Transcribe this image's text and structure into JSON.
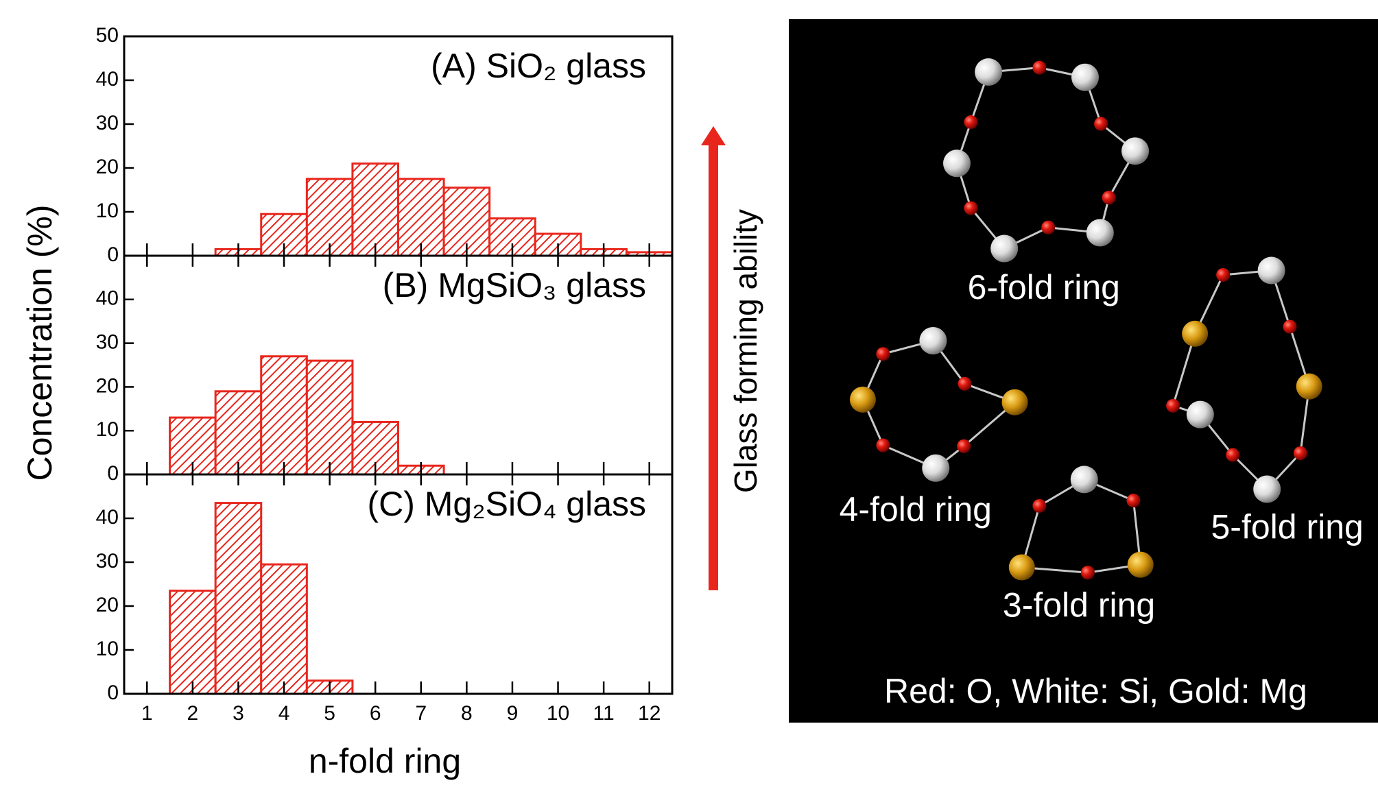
{
  "chart_data": [
    {
      "type": "bar",
      "title": "(A) SiO₂ glass",
      "color": "#e8261c",
      "x": [
        1,
        2,
        3,
        4,
        5,
        6,
        7,
        8,
        9,
        10,
        11,
        12
      ],
      "values": [
        0,
        0,
        1.5,
        9.5,
        17.5,
        21,
        17.5,
        15.5,
        8.5,
        5,
        1.5,
        0.8
      ],
      "xlim": [
        0.5,
        12.5
      ],
      "ylim": [
        0,
        50
      ],
      "yticks": [
        0,
        10,
        20,
        30,
        40,
        50
      ]
    },
    {
      "type": "bar",
      "title": "(B) MgSiO₃ glass",
      "color": "#e8261c",
      "ylabel": "Concentration (%)",
      "x": [
        1,
        2,
        3,
        4,
        5,
        6,
        7,
        8,
        9,
        10,
        11,
        12
      ],
      "values": [
        0,
        13,
        19,
        27,
        26,
        12,
        2,
        0,
        0,
        0,
        0,
        0
      ],
      "xlim": [
        0.5,
        12.5
      ],
      "ylim": [
        0,
        50
      ],
      "yticks": [
        0,
        10,
        20,
        30,
        40
      ]
    },
    {
      "type": "bar",
      "title": "(C) Mg₂SiO₄ glass",
      "color": "#e8261c",
      "xlabel": "n-fold ring",
      "x": [
        1,
        2,
        3,
        4,
        5,
        6,
        7,
        8,
        9,
        10,
        11,
        12
      ],
      "values": [
        0,
        23.5,
        43.5,
        29.5,
        3,
        0,
        0,
        0,
        0,
        0,
        0,
        0
      ],
      "xlim": [
        0.5,
        12.5
      ],
      "ylim": [
        0,
        50
      ],
      "yticks": [
        0,
        10,
        20,
        30,
        40
      ],
      "xticks": [
        1,
        2,
        3,
        4,
        5,
        6,
        7,
        8,
        9,
        10,
        11,
        12
      ]
    }
  ],
  "arrow_label": "Glass forming ability",
  "diagram": {
    "labels": [
      "6-fold ring",
      "4-fold ring",
      "5-fold ring",
      "3-fold ring"
    ],
    "legend": "Red: O, White: Si, Gold: Mg"
  }
}
